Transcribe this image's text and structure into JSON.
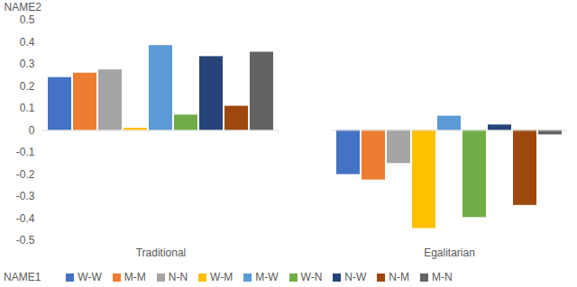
{
  "chart_data": {
    "type": "bar",
    "y_label": "NAME2",
    "x_label": "NAME1",
    "categories": [
      "Traditional",
      "Egalitarian"
    ],
    "series": [
      {
        "name": "W-W",
        "color": "#4472c4",
        "values": [
          0.24,
          -0.2
        ]
      },
      {
        "name": "M-M",
        "color": "#ed7d31",
        "values": [
          0.26,
          -0.225
        ]
      },
      {
        "name": "N-N",
        "color": "#a5a5a5",
        "values": [
          0.275,
          -0.15
        ]
      },
      {
        "name": "W-M",
        "color": "#ffc000",
        "values": [
          0.01,
          -0.445
        ]
      },
      {
        "name": "M-W",
        "color": "#5b9bd5",
        "values": [
          0.385,
          0.065
        ]
      },
      {
        "name": "W-N",
        "color": "#70ad47",
        "values": [
          0.07,
          -0.395
        ]
      },
      {
        "name": "N-W",
        "color": "#264478",
        "values": [
          0.335,
          0.025
        ]
      },
      {
        "name": "N-M",
        "color": "#9e480e",
        "values": [
          0.11,
          -0.34
        ]
      },
      {
        "name": "M-N",
        "color": "#636363",
        "values": [
          0.355,
          -0.02
        ]
      }
    ],
    "ylim": [
      -0.5,
      0.5
    ],
    "yticks": [
      -0.5,
      -0.4,
      -0.3,
      -0.2,
      -0.1,
      0,
      0.1,
      0.2,
      0.3,
      0.4,
      0.5
    ],
    "grid": false,
    "legend": "bottom"
  }
}
